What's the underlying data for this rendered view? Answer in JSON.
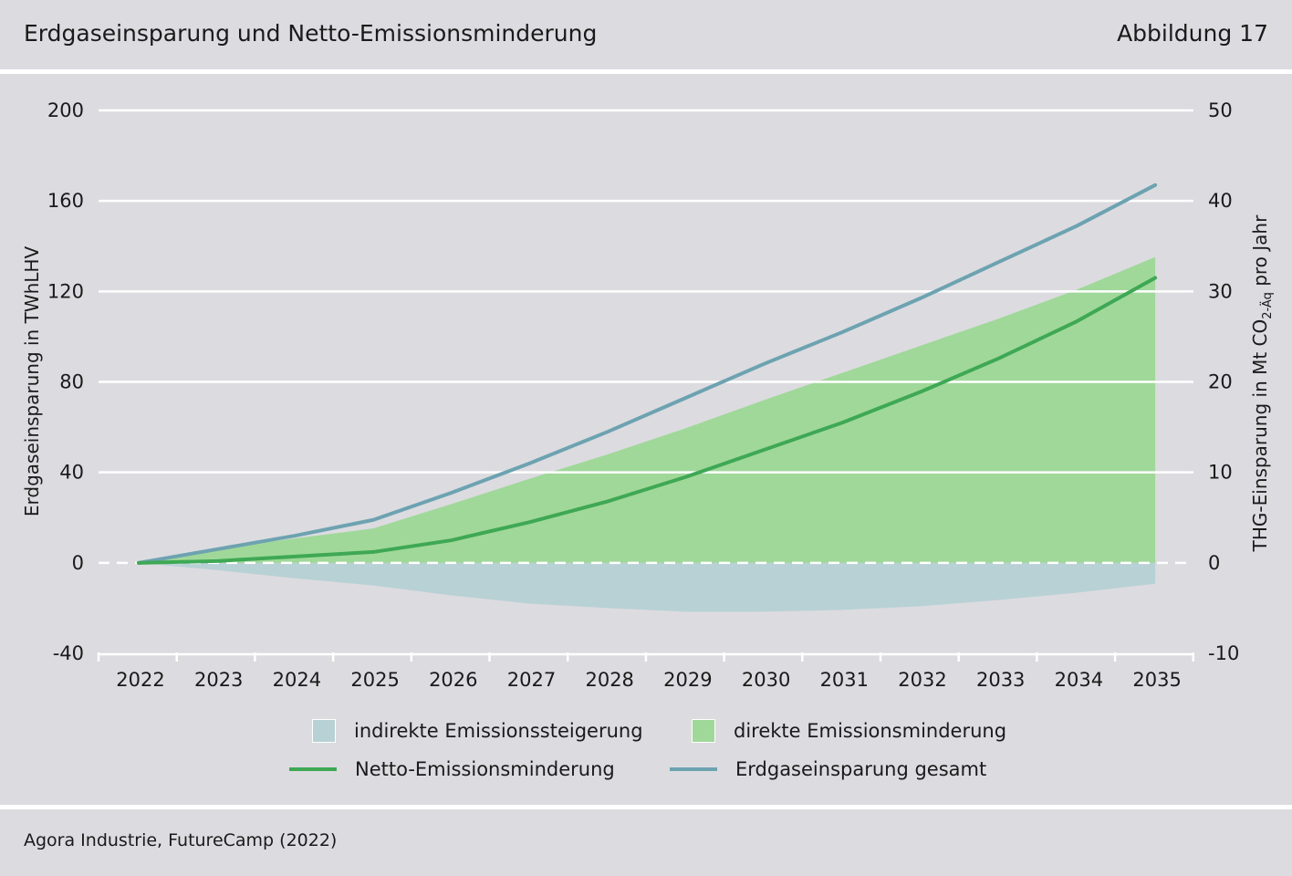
{
  "header": {
    "title": "Erdgaseinsparung und Netto-Emissionsminderung",
    "figure": "Abbildung 17"
  },
  "footer": {
    "source": "Agora Industrie, FutureCamp (2022)"
  },
  "colors": {
    "indirect": "#b8d1d5",
    "direct": "#a0d89a",
    "net": "#3ea855",
    "total": "#6da3b1",
    "grid": "#ffffff"
  },
  "chart_data": {
    "type": "area",
    "x": [
      2022,
      2023,
      2024,
      2025,
      2026,
      2027,
      2028,
      2029,
      2030,
      2031,
      2032,
      2033,
      2034,
      2035
    ],
    "ylabel": "Erdgaseinsparung in TWhLHV",
    "y2label_main": "THG-Einsparung in Mt CO",
    "y2label_sub": "2-Äq",
    "y2label_rest": " pro Jahr",
    "ylim": [
      -40,
      200
    ],
    "y2lim": [
      -10,
      50
    ],
    "yticks": [
      -40,
      0,
      40,
      80,
      120,
      160,
      200
    ],
    "y2ticks": [
      -10,
      0,
      10,
      20,
      30,
      40,
      50
    ],
    "series": [
      {
        "name": "indirekte Emissionssteigerung",
        "axis": "right",
        "kind": "area",
        "values": [
          0,
          -0.8,
          -1.7,
          -2.5,
          -3.6,
          -4.5,
          -5.0,
          -5.4,
          -5.4,
          -5.2,
          -4.8,
          -4.1,
          -3.3,
          -2.3
        ]
      },
      {
        "name": "direkte Emissionsminderung",
        "axis": "right",
        "kind": "area",
        "values": [
          0,
          1.5,
          2.7,
          3.8,
          6.5,
          9.3,
          12.0,
          14.9,
          18.0,
          21.0,
          24.0,
          27.0,
          30.2,
          33.8
        ]
      },
      {
        "name": "Netto-Emissionsminderung",
        "axis": "right",
        "kind": "line",
        "values": [
          0,
          0.2,
          0.7,
          1.2,
          2.5,
          4.5,
          6.8,
          9.5,
          12.5,
          15.5,
          18.9,
          22.6,
          26.7,
          31.5
        ]
      },
      {
        "name": "Erdgaseinsparung gesamt",
        "axis": "left",
        "kind": "line",
        "values": [
          0,
          6,
          12,
          19,
          31,
          44,
          58,
          73,
          88,
          102,
          117,
          133,
          149,
          167
        ]
      }
    ],
    "grid": true,
    "zero_line": "dashed",
    "legend_position": "bottom"
  }
}
